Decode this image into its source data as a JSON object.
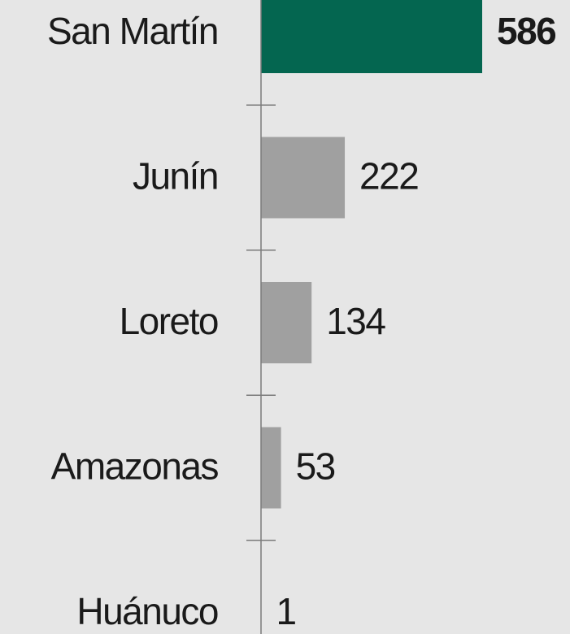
{
  "chart_data": {
    "type": "barh",
    "categories": [
      "San Martín",
      "Junín",
      "Loreto",
      "Amazonas",
      "Huánuco"
    ],
    "values": [
      586,
      222,
      134,
      53,
      1
    ],
    "colors": [
      "#046650",
      "#a0a0a0",
      "#a0a0a0",
      "#a0a0a0",
      "#a0a0a0"
    ],
    "label_colors": [
      "#046650",
      "#1a1a1a",
      "#1a1a1a",
      "#1a1a1a",
      "#1a1a1a"
    ],
    "label_bold": [
      true,
      false,
      false,
      false,
      false
    ]
  }
}
